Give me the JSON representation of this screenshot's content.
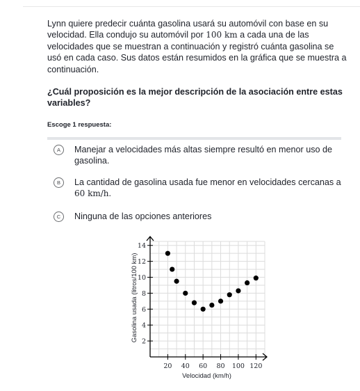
{
  "question_paragraph": {
    "before_distance": "Lynn quiere predecir cuánta gasolina usará su automóvil con base en su velocidad. Ella condujo su automóvil por ",
    "distance": "100 km",
    "after_distance": " a cada una de las velocidades que se muestran a continuación y registró cuánta gasolina se usó en cada caso. Sus datos están resumidos en la gráfica que se muestra a continuación."
  },
  "prompt": "¿Cuál proposición es la mejor descripción de la asociación entre estas variables?",
  "instruction": "Escoge 1 respuesta:",
  "choices": [
    {
      "letter": "A",
      "text": "Manejar a velocidades más altas siempre resultó en menor uso de gasolina."
    },
    {
      "letter": "B",
      "text_before": "La cantidad de gasolina usada fue menor en velocidades cercanas a ",
      "math": "60 km/h",
      "text_after": "."
    },
    {
      "letter": "C",
      "text": "Ninguna de las opciones anteriores"
    }
  ],
  "chart_data": {
    "type": "scatter",
    "xlabel": "Velocidad (km/h)",
    "ylabel": "Gasolina usada (litros/100 km)",
    "xlim": [
      0,
      130
    ],
    "ylim": [
      0,
      14.5
    ],
    "xticks": [
      20,
      40,
      60,
      80,
      100,
      120
    ],
    "yticks": [
      2,
      4,
      6,
      8,
      10,
      12,
      14
    ],
    "grid": true,
    "points": [
      {
        "x": 20,
        "y": 13
      },
      {
        "x": 25,
        "y": 11
      },
      {
        "x": 30,
        "y": 9.5
      },
      {
        "x": 40,
        "y": 8
      },
      {
        "x": 50,
        "y": 6.8
      },
      {
        "x": 60,
        "y": 6
      },
      {
        "x": 70,
        "y": 6.5
      },
      {
        "x": 80,
        "y": 7
      },
      {
        "x": 90,
        "y": 7.8
      },
      {
        "x": 100,
        "y": 8.3
      },
      {
        "x": 110,
        "y": 9.3
      },
      {
        "x": 120,
        "y": 9.9
      }
    ],
    "point_color": "#000000"
  }
}
